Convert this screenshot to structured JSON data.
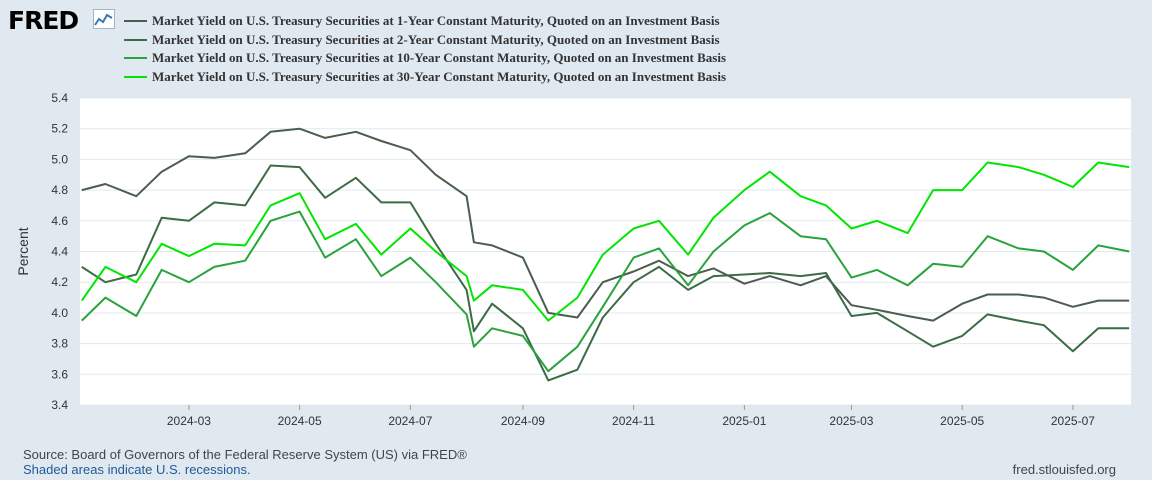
{
  "header": {
    "logo_text": "FRED",
    "logo_icon": "line-chart-icon"
  },
  "footer": {
    "source": "Source: Board of Governors of the Federal Reserve System (US) via FRED®",
    "recession_note": "Shaded areas indicate U.S. recessions.",
    "site": "fred.stlouisfed.org"
  },
  "chart_data": {
    "type": "line",
    "title": "",
    "xlabel": "",
    "ylabel": "Percent",
    "ylim": [
      3.4,
      5.4
    ],
    "yticks": [
      "3.4",
      "3.6",
      "3.8",
      "4.0",
      "4.2",
      "4.4",
      "4.6",
      "4.8",
      "5.0",
      "5.2",
      "5.4"
    ],
    "xlim": [
      "2024-01-01",
      "2025-08-02"
    ],
    "xticks": [
      "2024-03",
      "2024-05",
      "2024-07",
      "2024-09",
      "2024-11",
      "2025-01",
      "2025-03",
      "2025-05",
      "2025-07"
    ],
    "grid": "horizontal",
    "legend": "top-left",
    "series": [
      {
        "name": "Market Yield on U.S. Treasury Securities at 1-Year Constant Maturity, Quoted on an Investment Basis",
        "color": "#4b5d4e",
        "points": [
          [
            "2024-01-02",
            4.8
          ],
          [
            "2024-01-15",
            4.84
          ],
          [
            "2024-02-01",
            4.76
          ],
          [
            "2024-02-15",
            4.92
          ],
          [
            "2024-03-01",
            5.02
          ],
          [
            "2024-03-15",
            5.01
          ],
          [
            "2024-04-01",
            5.04
          ],
          [
            "2024-04-15",
            5.18
          ],
          [
            "2024-05-01",
            5.2
          ],
          [
            "2024-05-15",
            5.14
          ],
          [
            "2024-06-01",
            5.18
          ],
          [
            "2024-06-15",
            5.12
          ],
          [
            "2024-07-01",
            5.06
          ],
          [
            "2024-07-15",
            4.9
          ],
          [
            "2024-08-01",
            4.76
          ],
          [
            "2024-08-05",
            4.46
          ],
          [
            "2024-08-15",
            4.44
          ],
          [
            "2024-09-01",
            4.36
          ],
          [
            "2024-09-15",
            4.0
          ],
          [
            "2024-10-01",
            3.97
          ],
          [
            "2024-10-15",
            4.2
          ],
          [
            "2024-11-01",
            4.27
          ],
          [
            "2024-11-15",
            4.34
          ],
          [
            "2024-12-01",
            4.24
          ],
          [
            "2024-12-15",
            4.29
          ],
          [
            "2025-01-01",
            4.19
          ],
          [
            "2025-01-15",
            4.24
          ],
          [
            "2025-02-01",
            4.18
          ],
          [
            "2025-02-15",
            4.24
          ],
          [
            "2025-03-01",
            4.05
          ],
          [
            "2025-03-15",
            4.02
          ],
          [
            "2025-04-01",
            3.98
          ],
          [
            "2025-04-15",
            3.95
          ],
          [
            "2025-05-01",
            4.06
          ],
          [
            "2025-05-15",
            4.12
          ],
          [
            "2025-06-01",
            4.12
          ],
          [
            "2025-06-15",
            4.1
          ],
          [
            "2025-07-01",
            4.04
          ],
          [
            "2025-07-15",
            4.08
          ],
          [
            "2025-08-01",
            4.08
          ]
        ]
      },
      {
        "name": "Market Yield on U.S. Treasury Securities at 2-Year Constant Maturity, Quoted on an Investment Basis",
        "color": "#3c6b45",
        "points": [
          [
            "2024-01-02",
            4.3
          ],
          [
            "2024-01-15",
            4.2
          ],
          [
            "2024-02-01",
            4.25
          ],
          [
            "2024-02-15",
            4.62
          ],
          [
            "2024-03-01",
            4.6
          ],
          [
            "2024-03-15",
            4.72
          ],
          [
            "2024-04-01",
            4.7
          ],
          [
            "2024-04-15",
            4.96
          ],
          [
            "2024-05-01",
            4.95
          ],
          [
            "2024-05-15",
            4.75
          ],
          [
            "2024-06-01",
            4.88
          ],
          [
            "2024-06-15",
            4.72
          ],
          [
            "2024-07-01",
            4.72
          ],
          [
            "2024-07-15",
            4.45
          ],
          [
            "2024-08-01",
            4.15
          ],
          [
            "2024-08-05",
            3.88
          ],
          [
            "2024-08-15",
            4.06
          ],
          [
            "2024-09-01",
            3.9
          ],
          [
            "2024-09-15",
            3.56
          ],
          [
            "2024-10-01",
            3.63
          ],
          [
            "2024-10-15",
            3.97
          ],
          [
            "2024-11-01",
            4.2
          ],
          [
            "2024-11-15",
            4.3
          ],
          [
            "2024-12-01",
            4.15
          ],
          [
            "2024-12-15",
            4.24
          ],
          [
            "2025-01-01",
            4.25
          ],
          [
            "2025-01-15",
            4.26
          ],
          [
            "2025-02-01",
            4.24
          ],
          [
            "2025-02-15",
            4.26
          ],
          [
            "2025-03-01",
            3.98
          ],
          [
            "2025-03-15",
            4.0
          ],
          [
            "2025-04-01",
            3.88
          ],
          [
            "2025-04-15",
            3.78
          ],
          [
            "2025-05-01",
            3.85
          ],
          [
            "2025-05-15",
            3.99
          ],
          [
            "2025-06-01",
            3.95
          ],
          [
            "2025-06-15",
            3.92
          ],
          [
            "2025-07-01",
            3.75
          ],
          [
            "2025-07-15",
            3.9
          ],
          [
            "2025-08-01",
            3.9
          ]
        ]
      },
      {
        "name": "Market Yield on U.S. Treasury Securities at 10-Year Constant Maturity, Quoted on an Investment Basis",
        "color": "#2aa33c",
        "points": [
          [
            "2024-01-02",
            3.95
          ],
          [
            "2024-01-15",
            4.1
          ],
          [
            "2024-02-01",
            3.98
          ],
          [
            "2024-02-15",
            4.28
          ],
          [
            "2024-03-01",
            4.2
          ],
          [
            "2024-03-15",
            4.3
          ],
          [
            "2024-04-01",
            4.34
          ],
          [
            "2024-04-15",
            4.6
          ],
          [
            "2024-05-01",
            4.66
          ],
          [
            "2024-05-15",
            4.36
          ],
          [
            "2024-06-01",
            4.48
          ],
          [
            "2024-06-15",
            4.24
          ],
          [
            "2024-07-01",
            4.36
          ],
          [
            "2024-07-15",
            4.2
          ],
          [
            "2024-08-01",
            3.99
          ],
          [
            "2024-08-05",
            3.78
          ],
          [
            "2024-08-15",
            3.9
          ],
          [
            "2024-09-01",
            3.85
          ],
          [
            "2024-09-15",
            3.62
          ],
          [
            "2024-10-01",
            3.78
          ],
          [
            "2024-10-15",
            4.04
          ],
          [
            "2024-11-01",
            4.36
          ],
          [
            "2024-11-15",
            4.42
          ],
          [
            "2024-12-01",
            4.18
          ],
          [
            "2024-12-15",
            4.4
          ],
          [
            "2025-01-01",
            4.57
          ],
          [
            "2025-01-15",
            4.65
          ],
          [
            "2025-02-01",
            4.5
          ],
          [
            "2025-02-15",
            4.48
          ],
          [
            "2025-03-01",
            4.23
          ],
          [
            "2025-03-15",
            4.28
          ],
          [
            "2025-04-01",
            4.18
          ],
          [
            "2025-04-15",
            4.32
          ],
          [
            "2025-05-01",
            4.3
          ],
          [
            "2025-05-15",
            4.5
          ],
          [
            "2025-06-01",
            4.42
          ],
          [
            "2025-06-15",
            4.4
          ],
          [
            "2025-07-01",
            4.28
          ],
          [
            "2025-07-15",
            4.44
          ],
          [
            "2025-08-01",
            4.4
          ]
        ]
      },
      {
        "name": "Market Yield on U.S. Treasury Securities at 30-Year Constant Maturity, Quoted on an Investment Basis",
        "color": "#00e600",
        "points": [
          [
            "2024-01-02",
            4.08
          ],
          [
            "2024-01-15",
            4.3
          ],
          [
            "2024-02-01",
            4.2
          ],
          [
            "2024-02-15",
            4.45
          ],
          [
            "2024-03-01",
            4.37
          ],
          [
            "2024-03-15",
            4.45
          ],
          [
            "2024-04-01",
            4.44
          ],
          [
            "2024-04-15",
            4.7
          ],
          [
            "2024-05-01",
            4.78
          ],
          [
            "2024-05-15",
            4.48
          ],
          [
            "2024-06-01",
            4.58
          ],
          [
            "2024-06-15",
            4.38
          ],
          [
            "2024-07-01",
            4.55
          ],
          [
            "2024-07-15",
            4.4
          ],
          [
            "2024-08-01",
            4.24
          ],
          [
            "2024-08-05",
            4.08
          ],
          [
            "2024-08-15",
            4.18
          ],
          [
            "2024-09-01",
            4.15
          ],
          [
            "2024-09-15",
            3.95
          ],
          [
            "2024-10-01",
            4.1
          ],
          [
            "2024-10-15",
            4.38
          ],
          [
            "2024-11-01",
            4.55
          ],
          [
            "2024-11-15",
            4.6
          ],
          [
            "2024-12-01",
            4.38
          ],
          [
            "2024-12-15",
            4.62
          ],
          [
            "2025-01-01",
            4.8
          ],
          [
            "2025-01-15",
            4.92
          ],
          [
            "2025-02-01",
            4.76
          ],
          [
            "2025-02-15",
            4.7
          ],
          [
            "2025-03-01",
            4.55
          ],
          [
            "2025-03-15",
            4.6
          ],
          [
            "2025-04-01",
            4.52
          ],
          [
            "2025-04-15",
            4.8
          ],
          [
            "2025-05-01",
            4.8
          ],
          [
            "2025-05-15",
            4.98
          ],
          [
            "2025-06-01",
            4.95
          ],
          [
            "2025-06-15",
            4.9
          ],
          [
            "2025-07-01",
            4.82
          ],
          [
            "2025-07-15",
            4.98
          ],
          [
            "2025-08-01",
            4.95
          ]
        ]
      }
    ]
  }
}
